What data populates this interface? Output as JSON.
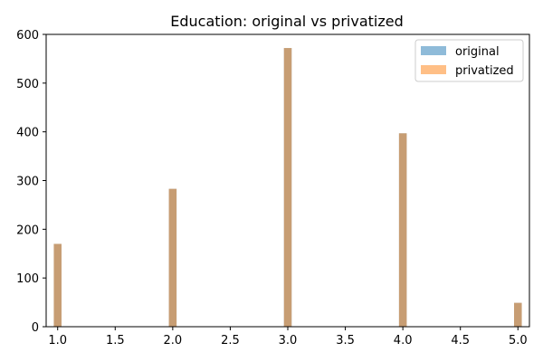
{
  "chart_data": {
    "type": "bar",
    "title": "Education: original vs privatized",
    "xlabel": "",
    "ylabel": "",
    "x": [
      1.0,
      2.0,
      3.0,
      4.0,
      5.0
    ],
    "series": [
      {
        "name": "original",
        "values": [
          170,
          283,
          572,
          397,
          49
        ],
        "color": "#1f77b4",
        "opacity": 0.5
      },
      {
        "name": "privatized",
        "values": [
          170,
          283,
          572,
          397,
          49
        ],
        "color": "#ff7f0e",
        "opacity": 0.5
      }
    ],
    "xlim": [
      0.9,
      5.1
    ],
    "ylim": [
      0,
      600
    ],
    "xticks": [
      "1.0",
      "1.5",
      "2.0",
      "2.5",
      "3.0",
      "3.5",
      "4.0",
      "4.5",
      "5.0"
    ],
    "yticks": [
      "0",
      "100",
      "200",
      "300",
      "400",
      "500",
      "600"
    ],
    "bar_width": 0.067,
    "grid": false,
    "legend_position": "top-right"
  }
}
